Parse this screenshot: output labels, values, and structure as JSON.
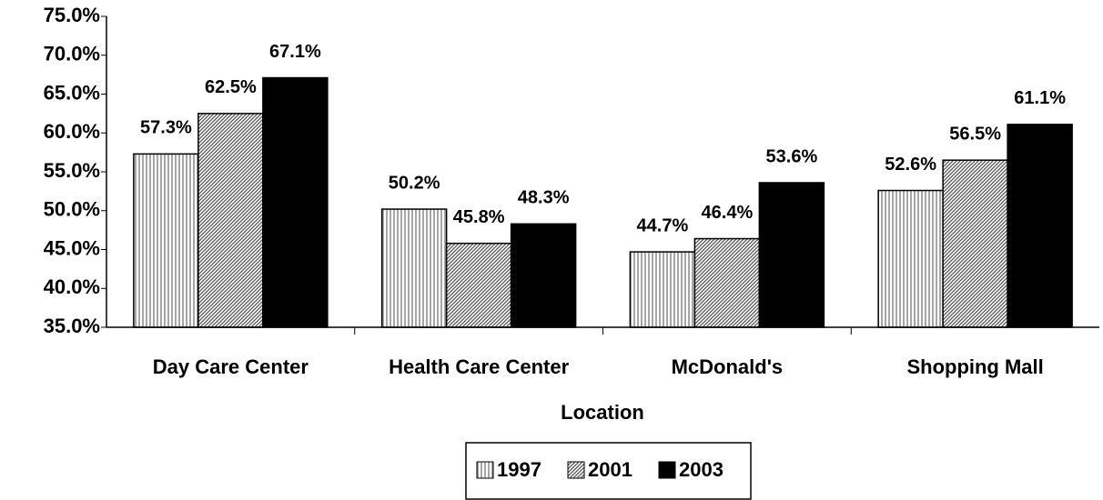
{
  "chart_data": {
    "type": "bar",
    "x_label": "Location",
    "categories": [
      "Day Care Center",
      "Health Care Center",
      "McDonald's",
      "Shopping Mall"
    ],
    "series": [
      {
        "name": "1997",
        "color": "#888888",
        "pattern": "vertical",
        "values": [
          57.3,
          50.2,
          44.7,
          52.6
        ],
        "value_labels": [
          "57.3%",
          "50.2%",
          "44.7%",
          "52.6%"
        ]
      },
      {
        "name": "2001",
        "color": "#555555",
        "pattern": "diagonal",
        "values": [
          62.5,
          45.8,
          46.4,
          56.5
        ],
        "value_labels": [
          "62.5%",
          "45.8%",
          "46.4%",
          "56.5%"
        ]
      },
      {
        "name": "2003",
        "color": "#000000",
        "pattern": "solid",
        "values": [
          67.1,
          48.3,
          53.6,
          61.1
        ],
        "value_labels": [
          "67.1%",
          "48.3%",
          "53.6%",
          "61.1%"
        ]
      }
    ],
    "ylim": [
      35,
      75
    ],
    "yticks": [
      {
        "value": 35,
        "label": "35.0%"
      },
      {
        "value": 40,
        "label": "40.0%"
      },
      {
        "value": 45,
        "label": "45.0%"
      },
      {
        "value": 50,
        "label": "50.0%"
      },
      {
        "value": 55,
        "label": "55.0%"
      },
      {
        "value": 60,
        "label": "60.0%"
      },
      {
        "value": 65,
        "label": "65.0%"
      },
      {
        "value": 70,
        "label": "70.0%"
      },
      {
        "value": 75,
        "label": "75.0%"
      }
    ],
    "legend": "bottom"
  }
}
